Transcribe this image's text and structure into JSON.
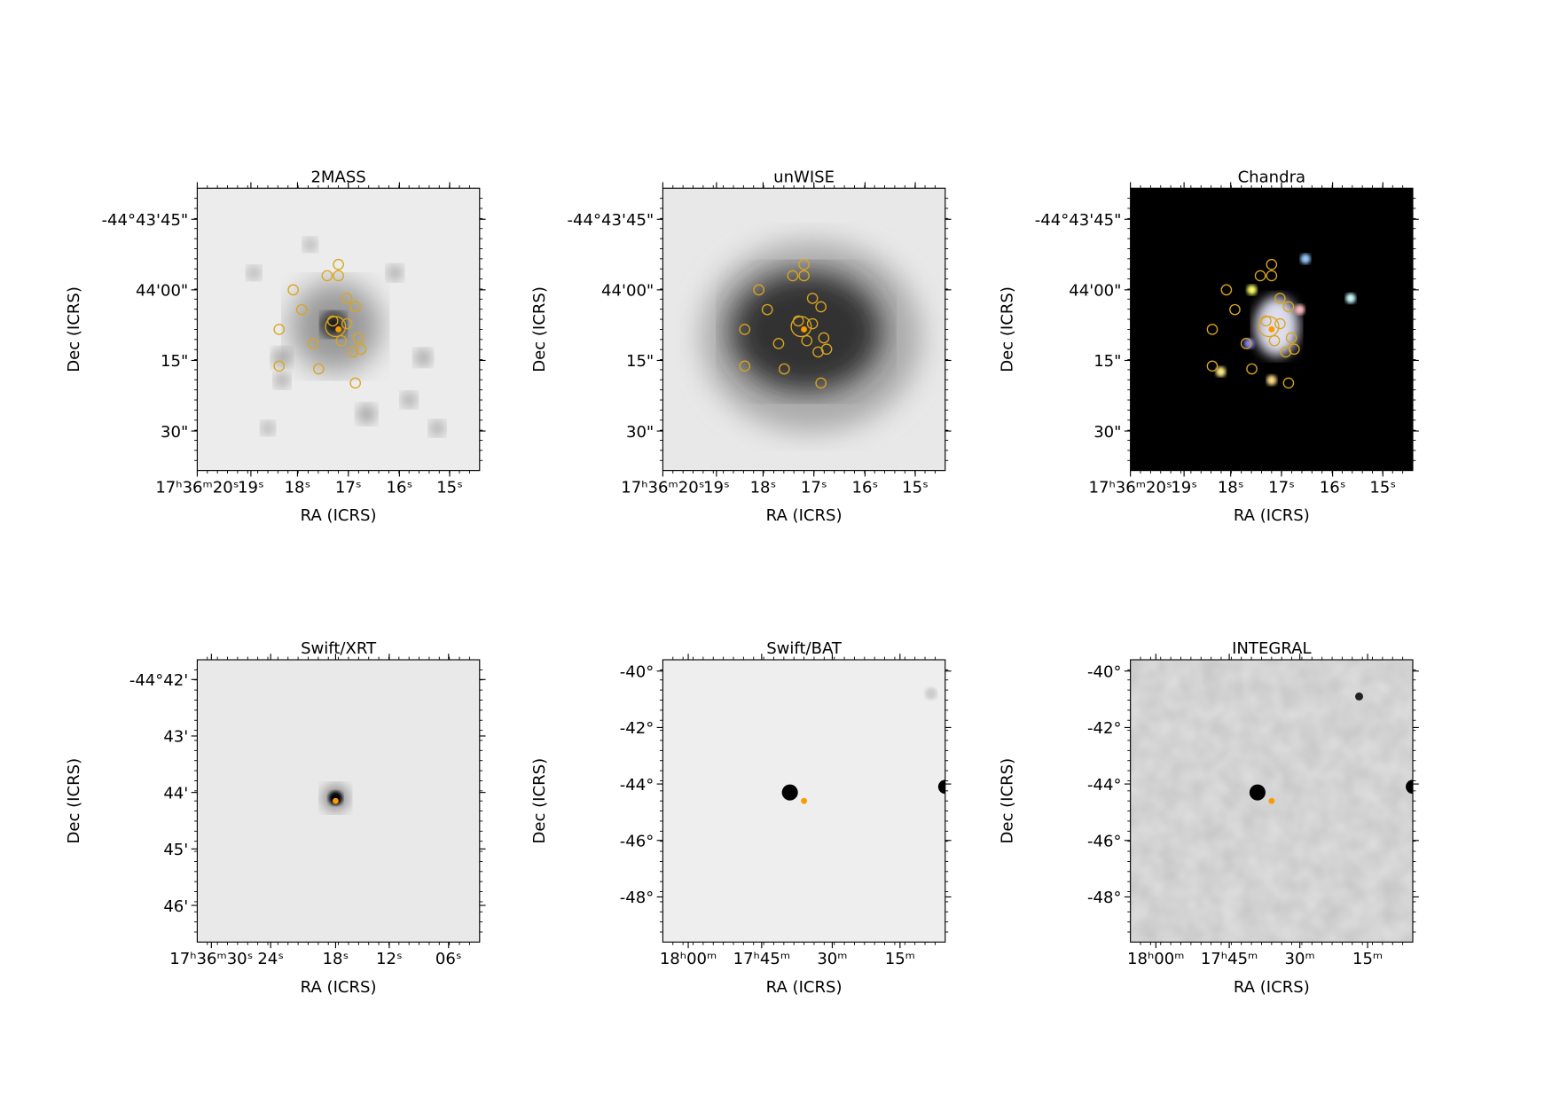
{
  "panels": [
    {
      "title": "2MASS",
      "xlabel": "RA (ICRS)",
      "ylabel": "Dec (ICRS)",
      "xticks": [
        "17ʰ36ᵐ20ˢ",
        "19ˢ",
        "18ˢ",
        "17ˢ",
        "16ˢ",
        "15ˢ"
      ],
      "yticks": [
        "-44°43'45\"",
        "44'00\"",
        "15\"",
        "30\""
      ]
    },
    {
      "title": "unWISE",
      "xlabel": "RA (ICRS)",
      "ylabel": "Dec (ICRS)",
      "xticks": [
        "17ʰ36ᵐ20ˢ",
        "19ˢ",
        "18ˢ",
        "17ˢ",
        "16ˢ",
        "15ˢ"
      ],
      "yticks": [
        "-44°43'45\"",
        "44'00\"",
        "15\"",
        "30\""
      ]
    },
    {
      "title": "Chandra",
      "xlabel": "RA (ICRS)",
      "ylabel": "Dec (ICRS)",
      "xticks": [
        "17ʰ36ᵐ20ˢ",
        "19ˢ",
        "18ˢ",
        "17ˢ",
        "16ˢ",
        "15ˢ"
      ],
      "yticks": [
        "-44°43'45\"",
        "44'00\"",
        "15\"",
        "30\""
      ]
    },
    {
      "title": "Swift/XRT",
      "xlabel": "RA (ICRS)",
      "ylabel": "Dec (ICRS)",
      "xticks": [
        "17ʰ36ᵐ30ˢ",
        "24ˢ",
        "18ˢ",
        "12ˢ",
        "06ˢ"
      ],
      "yticks": [
        "-44°42'",
        "43'",
        "44'",
        "45'",
        "46'"
      ]
    },
    {
      "title": "Swift/BAT",
      "xlabel": "RA (ICRS)",
      "ylabel": "Dec (ICRS)",
      "xticks": [
        "18ʰ00ᵐ",
        "17ʰ45ᵐ",
        "30ᵐ",
        "15ᵐ"
      ],
      "yticks": [
        "-40°",
        "-42°",
        "-44°",
        "-46°",
        "-48°"
      ]
    },
    {
      "title": "INTEGRAL",
      "xlabel": "RA (ICRS)",
      "ylabel": "Dec (ICRS)",
      "xticks": [
        "18ʰ00ᵐ",
        "17ʰ45ᵐ",
        "30ᵐ",
        "15ᵐ"
      ],
      "yticks": [
        "-40°",
        "-42°",
        "-44°",
        "-46°",
        "-48°"
      ]
    }
  ]
}
